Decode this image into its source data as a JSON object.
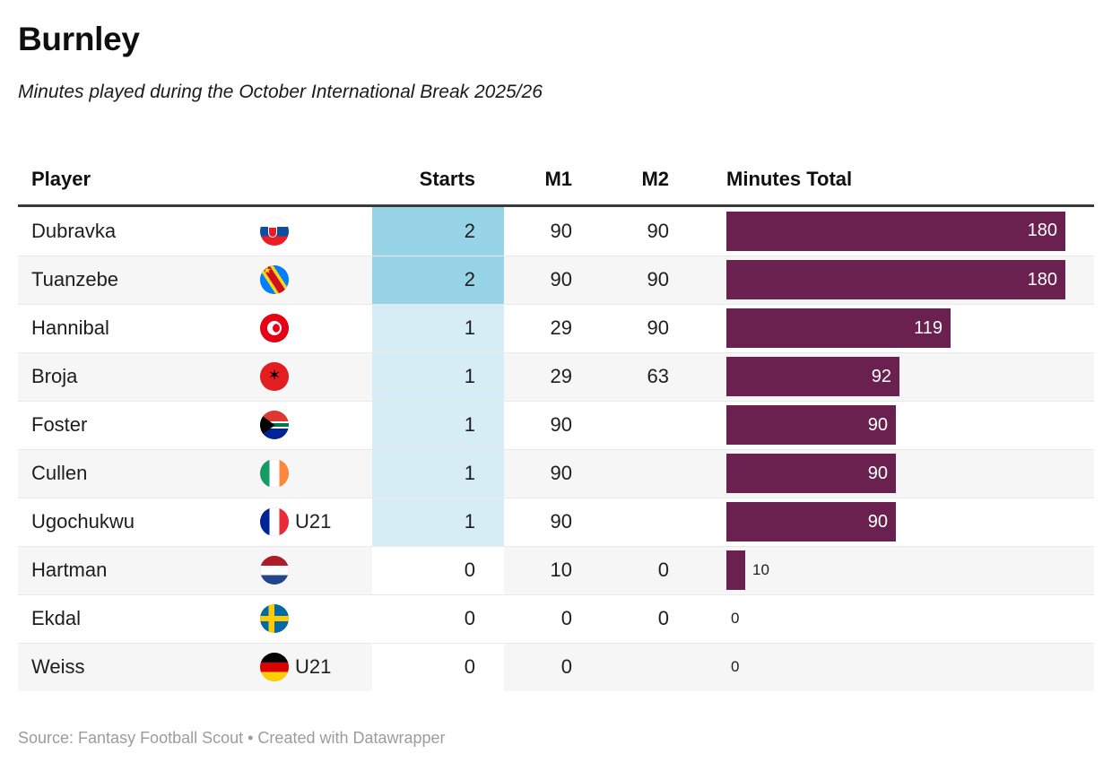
{
  "title": "Burnley",
  "subtitle": "Minutes played during the October International Break 2025/26",
  "footer": "Source: Fantasy Football Scout • Created with Datawrapper",
  "colors": {
    "bar": "#6b2150",
    "starts_2": "#97d4e7",
    "starts_1": "#d7edf6",
    "starts_0": "#ffffff",
    "zebra_row": "#f6f6f6",
    "header_rule": "#3a3a3a"
  },
  "chart_data": {
    "type": "table",
    "title": "Burnley",
    "subtitle": "Minutes played during the October International Break 2025/26",
    "columns": [
      "Player",
      "Starts",
      "M1",
      "M2",
      "Minutes Total"
    ],
    "bar_column": "Minutes Total",
    "bar_max": 180,
    "heatmap_column": "Starts",
    "rows": [
      {
        "player": "Dubravka",
        "nationality": "slovakia",
        "u21": "",
        "starts": 2,
        "m1": "90",
        "m2": "90",
        "total": 180
      },
      {
        "player": "Tuanzebe",
        "nationality": "dr-congo",
        "u21": "",
        "starts": 2,
        "m1": "90",
        "m2": "90",
        "total": 180
      },
      {
        "player": "Hannibal",
        "nationality": "tunisia",
        "u21": "",
        "starts": 1,
        "m1": "29",
        "m2": "90",
        "total": 119
      },
      {
        "player": "Broja",
        "nationality": "albania",
        "u21": "",
        "starts": 1,
        "m1": "29",
        "m2": "63",
        "total": 92
      },
      {
        "player": "Foster",
        "nationality": "south-africa",
        "u21": "",
        "starts": 1,
        "m1": "90",
        "m2": "",
        "total": 90
      },
      {
        "player": "Cullen",
        "nationality": "ireland",
        "u21": "",
        "starts": 1,
        "m1": "90",
        "m2": "",
        "total": 90
      },
      {
        "player": "Ugochukwu",
        "nationality": "france",
        "u21": "U21",
        "starts": 1,
        "m1": "90",
        "m2": "",
        "total": 90
      },
      {
        "player": "Hartman",
        "nationality": "netherlands",
        "u21": "",
        "starts": 0,
        "m1": "10",
        "m2": "0",
        "total": 10
      },
      {
        "player": "Ekdal",
        "nationality": "sweden",
        "u21": "",
        "starts": 0,
        "m1": "0",
        "m2": "0",
        "total": 0
      },
      {
        "player": "Weiss",
        "nationality": "germany",
        "u21": "U21",
        "starts": 0,
        "m1": "0",
        "m2": "",
        "total": 0
      }
    ]
  }
}
